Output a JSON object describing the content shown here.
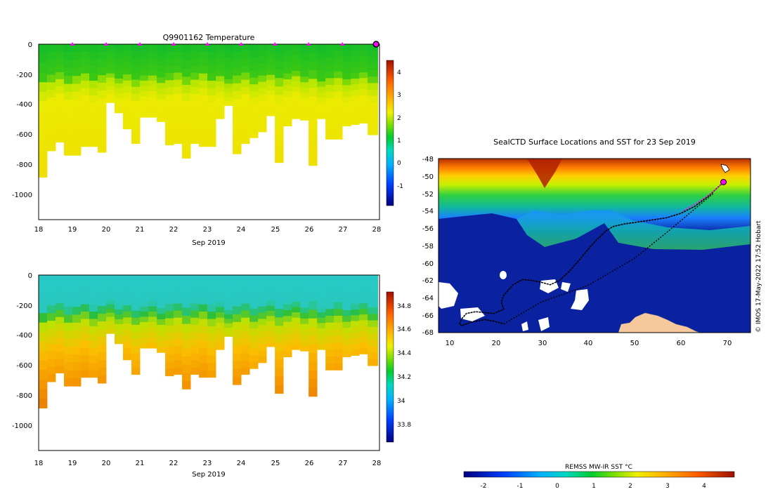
{
  "chart_data": [
    {
      "type": "heatmap",
      "title": "Q9901162  Temperature",
      "xlabel": "Sep 2019",
      "ylabel": "",
      "x_ticks": [
        "18",
        "19",
        "20",
        "21",
        "22",
        "23",
        "24",
        "25",
        "26",
        "27",
        "28"
      ],
      "xlim": [
        18,
        28.1
      ],
      "y_ticks": [
        "0",
        "-200",
        "-400",
        "-600",
        "-800",
        "-1000"
      ],
      "ylim": [
        -1200,
        0
      ],
      "colorbar": {
        "ticks": [
          "4",
          "3",
          "2",
          "1",
          "0",
          "-1"
        ],
        "range": [
          -1.8,
          4.6
        ]
      },
      "markers_x": [
        19,
        20,
        21,
        22,
        23,
        24,
        25,
        26,
        27
      ],
      "current_marker_x": 28,
      "profiles": [
        {
          "day": 18.0,
          "depth": 910
        },
        {
          "day": 18.25,
          "depth": 730
        },
        {
          "day": 18.5,
          "depth": 670
        },
        {
          "day": 18.75,
          "depth": 760
        },
        {
          "day": 19.0,
          "depth": 760
        },
        {
          "day": 19.25,
          "depth": 700
        },
        {
          "day": 19.5,
          "depth": 700
        },
        {
          "day": 19.75,
          "depth": 740
        },
        {
          "day": 20.0,
          "depth": 400
        },
        {
          "day": 20.25,
          "depth": 470
        },
        {
          "day": 20.5,
          "depth": 580
        },
        {
          "day": 20.75,
          "depth": 680
        },
        {
          "day": 21.0,
          "depth": 500
        },
        {
          "day": 21.25,
          "depth": 500
        },
        {
          "day": 21.5,
          "depth": 530
        },
        {
          "day": 21.75,
          "depth": 690
        },
        {
          "day": 22.0,
          "depth": 680
        },
        {
          "day": 22.25,
          "depth": 780
        },
        {
          "day": 22.5,
          "depth": 680
        },
        {
          "day": 22.75,
          "depth": 700
        },
        {
          "day": 23.0,
          "depth": 700
        },
        {
          "day": 23.25,
          "depth": 510
        },
        {
          "day": 23.5,
          "depth": 420
        },
        {
          "day": 23.75,
          "depth": 750
        },
        {
          "day": 24.0,
          "depth": 680
        },
        {
          "day": 24.25,
          "depth": 640
        },
        {
          "day": 24.5,
          "depth": 600
        },
        {
          "day": 24.75,
          "depth": 490
        },
        {
          "day": 25.0,
          "depth": 810
        },
        {
          "day": 25.25,
          "depth": 560
        },
        {
          "day": 25.5,
          "depth": 510
        },
        {
          "day": 25.75,
          "depth": 520
        },
        {
          "day": 26.0,
          "depth": 830
        },
        {
          "day": 26.25,
          "depth": 510
        },
        {
          "day": 26.5,
          "depth": 650
        },
        {
          "day": 26.75,
          "depth": 650
        },
        {
          "day": 27.0,
          "depth": 560
        },
        {
          "day": 27.25,
          "depth": 550
        },
        {
          "day": 27.5,
          "depth": 540
        },
        {
          "day": 27.75,
          "depth": 620
        }
      ]
    },
    {
      "type": "heatmap",
      "title": "",
      "xlabel": "Sep 2019",
      "ylabel": "",
      "x_ticks": [
        "18",
        "19",
        "20",
        "21",
        "22",
        "23",
        "24",
        "25",
        "26",
        "27",
        "28"
      ],
      "xlim": [
        18,
        28.1
      ],
      "y_ticks": [
        "0",
        "-200",
        "-400",
        "-600",
        "-800",
        "-1000"
      ],
      "ylim": [
        -1200,
        0
      ],
      "colorbar": {
        "ticks": [
          "34.8",
          "34.6",
          "34.4",
          "34.2",
          "34",
          "33.8"
        ],
        "range": [
          33.64,
          34.9
        ]
      }
    },
    {
      "type": "heatmap",
      "title": "SealCTD Surface Locations and SST for 23 Sep 2019",
      "xlabel": "",
      "ylabel": "",
      "x_ticks": [
        "10",
        "20",
        "30",
        "40",
        "50",
        "60",
        "70"
      ],
      "xlim": [
        8,
        75
      ],
      "y_ticks": [
        "-48",
        "-50",
        "-52",
        "-54",
        "-56",
        "-58",
        "-60",
        "-62",
        "-64",
        "-66",
        "-68"
      ],
      "ylim": [
        -68,
        -48
      ],
      "track_lon": [
        69.2,
        66,
        63,
        60,
        57,
        52,
        48,
        45.5,
        44,
        42,
        40,
        38,
        36,
        34,
        32,
        30,
        28,
        26,
        24,
        22,
        21.5,
        22,
        20,
        18,
        16,
        14,
        13,
        12.5,
        13,
        15,
        18,
        20,
        22
      ],
      "track_lat": [
        -50.7,
        -52.3,
        -53.5,
        -54.3,
        -54.8,
        -55.2,
        -55.5,
        -55.8,
        -56.3,
        -57.3,
        -58.5,
        -59.8,
        -61,
        -62,
        -62.5,
        -62.2,
        -62,
        -61.9,
        -62.5,
        -63.7,
        -64.5,
        -65.3,
        -65.8,
        -65.7,
        -65.6,
        -65.8,
        -66.4,
        -67,
        -67.2,
        -66.8,
        -66.5,
        -66.7,
        -67
      ],
      "current_location": {
        "lon": 69.2,
        "lat": -50.7
      }
    },
    {
      "type": "colorbar",
      "title": "REMSS MW-IR SST °C",
      "ticks": [
        "-2",
        "-1",
        "0",
        "1",
        "2",
        "3",
        "4"
      ],
      "range": [
        -2.6,
        4.7
      ]
    }
  ],
  "credit": "© IMOS 17-May-2022 17:52 Hobart",
  "colors": {
    "frame": "#000000",
    "marker": "#ff00ff",
    "ocean_cold": "#0b22a0",
    "land": "#f6c89c",
    "ice": "#ffffff"
  }
}
